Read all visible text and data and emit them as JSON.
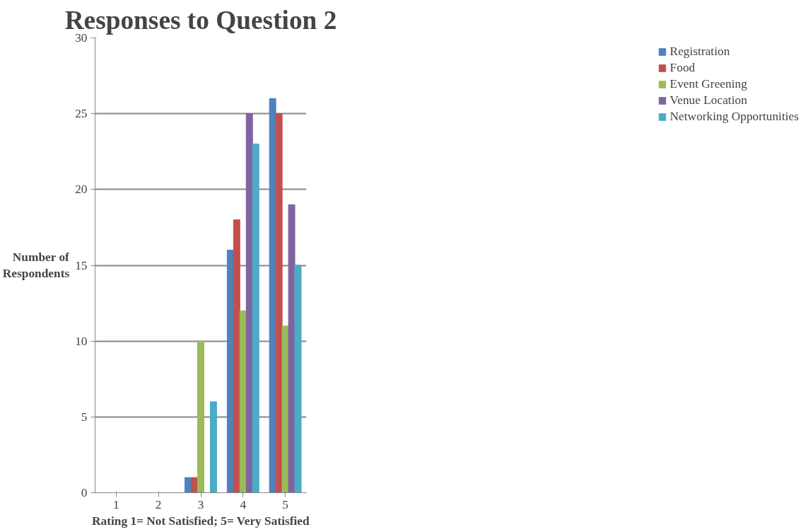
{
  "chart_data": {
    "type": "bar",
    "title": "Responses to Question 2",
    "xlabel": "Rating 1= Not Satisfied; 5= Very Satisfied",
    "ylabel": "Number of\nRespondents",
    "categories": [
      "1",
      "2",
      "3",
      "4",
      "5"
    ],
    "series": [
      {
        "name": "Registration",
        "color": "#4f81bd",
        "values": [
          0,
          0,
          1,
          16,
          26
        ]
      },
      {
        "name": "Food",
        "color": "#c0504d",
        "values": [
          0,
          0,
          1,
          18,
          25
        ]
      },
      {
        "name": "Event Greening",
        "color": "#9bbb59",
        "values": [
          0,
          0,
          10,
          12,
          11
        ]
      },
      {
        "name": "Venue Location",
        "color": "#8064a2",
        "values": [
          0,
          0,
          0,
          25,
          19
        ]
      },
      {
        "name": "Networking Opportunities",
        "color": "#4bacc6",
        "values": [
          0,
          0,
          6,
          23,
          15
        ]
      }
    ],
    "ylim": [
      0,
      30
    ],
    "yticks": [
      0,
      5,
      10,
      15,
      20,
      25,
      30
    ],
    "grid": "y",
    "legend": "right"
  }
}
